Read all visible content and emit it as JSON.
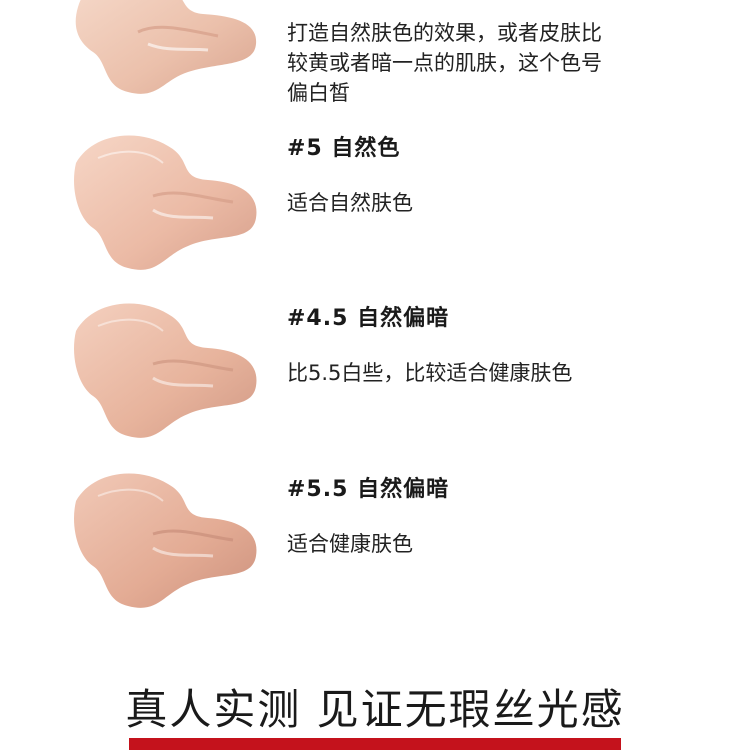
{
  "shades": [
    {
      "id": "top",
      "title": "",
      "desc_lines": [
        "打造自然肤色的效果，或者皮肤比",
        "较黄或者暗一点的肌肤，这个色号",
        "偏白皙"
      ]
    },
    {
      "id": "5",
      "title": "#5 自然色",
      "desc_lines": [
        "适合自然肤色"
      ]
    },
    {
      "id": "4.5",
      "title": "#4.5 自然偏暗",
      "desc_lines": [
        "比5.5白些，比较适合健康肤色"
      ]
    },
    {
      "id": "5.5",
      "title": "#5.5 自然偏暗",
      "desc_lines": [
        "适合健康肤色"
      ]
    }
  ],
  "footer": {
    "title": "真人实测 见证无瑕丝光感"
  },
  "colors": {
    "accent_bar": "#c4121c",
    "swatch_light": "#f3d2c3",
    "swatch_mid": "#e7b7a1",
    "swatch_shadow": "#c99480"
  }
}
